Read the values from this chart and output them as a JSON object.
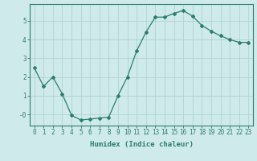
{
  "x": [
    0,
    1,
    2,
    3,
    4,
    5,
    6,
    7,
    8,
    9,
    10,
    11,
    12,
    13,
    14,
    15,
    16,
    17,
    18,
    19,
    20,
    21,
    22,
    23
  ],
  "y": [
    2.5,
    1.5,
    2.0,
    1.1,
    -0.05,
    -0.3,
    -0.25,
    -0.2,
    -0.15,
    1.0,
    2.0,
    3.4,
    4.4,
    5.2,
    5.2,
    5.4,
    5.55,
    5.25,
    4.75,
    4.45,
    4.2,
    4.0,
    3.85,
    3.85
  ],
  "line_color": "#2e7d6e",
  "marker": "D",
  "markersize": 2.0,
  "bg_color": "#ceeaea",
  "grid_color": "#afd4d4",
  "xlabel": "Humidex (Indice chaleur)",
  "ylim": [
    -0.6,
    5.9
  ],
  "xlim": [
    -0.5,
    23.5
  ],
  "yticks": [
    0,
    1,
    2,
    3,
    4,
    5
  ],
  "ytick_labels": [
    "-0",
    "1",
    "2",
    "3",
    "4",
    "5"
  ],
  "xticks": [
    0,
    1,
    2,
    3,
    4,
    5,
    6,
    7,
    8,
    9,
    10,
    11,
    12,
    13,
    14,
    15,
    16,
    17,
    18,
    19,
    20,
    21,
    22,
    23
  ],
  "tick_color": "#2e7d6e",
  "label_color": "#2e7d6e",
  "tick_fontsize": 5.5,
  "xlabel_fontsize": 6.5
}
